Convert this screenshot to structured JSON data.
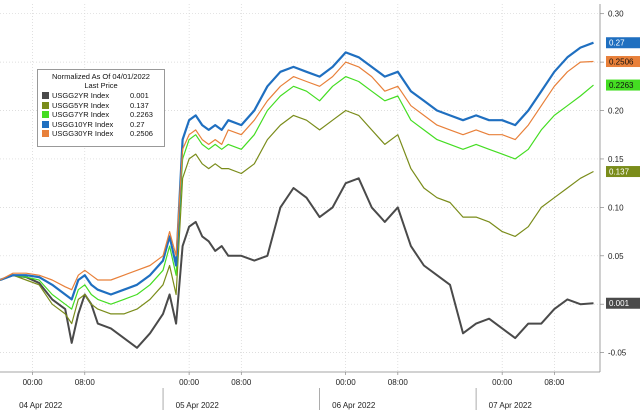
{
  "chart_data": {
    "type": "line",
    "title": "",
    "xlabel": "",
    "ylabel": "",
    "ylim": [
      -0.07,
      0.31
    ],
    "yticks": [
      -0.05,
      0.0,
      0.05,
      0.1,
      0.15,
      0.2,
      0.25,
      0.3
    ],
    "ytick_labels": [
      "-0.05",
      "0.00",
      "0.05",
      "0.10",
      "0.15",
      "0.20",
      "0.25",
      "0.30"
    ],
    "grid": true,
    "legend_position": "top-left",
    "legend_title": "Normalized As Of 04/01/2022",
    "legend_subtitle": "Last Price",
    "x_time_labels": [
      "00:00",
      "08:00",
      "00:00",
      "08:00",
      "00:00",
      "08:00",
      "00:00",
      "08:00"
    ],
    "x_time_positions_hours": [
      0,
      8,
      24,
      32,
      48,
      56,
      72,
      80
    ],
    "x_date_labels": [
      "04 Apr 2022",
      "05 Apr 2022",
      "06 Apr 2022",
      "07 Apr 2022"
    ],
    "x_date_positions_hours": [
      4,
      28,
      52,
      76
    ],
    "x_range_hours": [
      -5,
      87
    ],
    "series": [
      {
        "name": "USGG2YR Index",
        "last": "0.001",
        "color": "#4a4a4a",
        "x": [
          -5,
          -3,
          -1,
          1,
          3,
          5,
          6,
          7,
          8,
          9,
          10,
          12,
          14,
          16,
          18,
          20,
          21,
          22,
          23,
          24,
          25,
          26,
          27,
          28,
          29,
          30,
          32,
          34,
          36,
          38,
          40,
          42,
          44,
          46,
          48,
          50,
          52,
          54,
          56,
          58,
          60,
          62,
          64,
          66,
          68,
          70,
          72,
          74,
          76,
          78,
          80,
          82,
          84,
          86
        ],
        "y": [
          0.025,
          0.03,
          0.028,
          0.022,
          0.005,
          -0.005,
          -0.04,
          -0.01,
          0.01,
          0.0,
          -0.02,
          -0.025,
          -0.035,
          -0.045,
          -0.03,
          -0.01,
          0.01,
          -0.02,
          0.06,
          0.08,
          0.085,
          0.07,
          0.065,
          0.055,
          0.06,
          0.05,
          0.05,
          0.045,
          0.05,
          0.1,
          0.12,
          0.11,
          0.09,
          0.1,
          0.125,
          0.13,
          0.1,
          0.085,
          0.1,
          0.06,
          0.04,
          0.03,
          0.02,
          -0.03,
          -0.02,
          -0.015,
          -0.025,
          -0.035,
          -0.02,
          -0.02,
          -0.005,
          0.005,
          0.0,
          0.001
        ]
      },
      {
        "name": "USGG5YR Index",
        "last": "0.137",
        "color": "#7a8c1a",
        "x": [
          -5,
          -3,
          -1,
          1,
          3,
          5,
          6,
          7,
          8,
          9,
          10,
          12,
          14,
          16,
          18,
          20,
          21,
          22,
          23,
          24,
          25,
          26,
          27,
          28,
          29,
          30,
          32,
          34,
          36,
          38,
          40,
          42,
          44,
          46,
          48,
          50,
          52,
          54,
          56,
          58,
          60,
          62,
          64,
          66,
          68,
          70,
          72,
          74,
          76,
          78,
          80,
          82,
          84,
          86
        ],
        "y": [
          0.025,
          0.03,
          0.025,
          0.02,
          0.0,
          -0.01,
          -0.02,
          0.005,
          0.01,
          0.0,
          -0.005,
          -0.01,
          -0.01,
          -0.005,
          0.005,
          0.02,
          0.04,
          0.01,
          0.13,
          0.15,
          0.155,
          0.145,
          0.14,
          0.145,
          0.14,
          0.14,
          0.135,
          0.145,
          0.17,
          0.185,
          0.195,
          0.19,
          0.18,
          0.19,
          0.2,
          0.195,
          0.18,
          0.165,
          0.175,
          0.14,
          0.12,
          0.11,
          0.105,
          0.09,
          0.09,
          0.085,
          0.075,
          0.07,
          0.08,
          0.1,
          0.11,
          0.12,
          0.13,
          0.137
        ]
      },
      {
        "name": "USGG7YR Index",
        "last": "0.2263",
        "color": "#44dd22",
        "x": [
          -5,
          -3,
          -1,
          1,
          3,
          5,
          6,
          7,
          8,
          9,
          10,
          12,
          14,
          16,
          18,
          20,
          21,
          22,
          23,
          24,
          25,
          26,
          27,
          28,
          29,
          30,
          32,
          34,
          36,
          38,
          40,
          42,
          44,
          46,
          48,
          50,
          52,
          54,
          56,
          58,
          60,
          62,
          64,
          66,
          68,
          70,
          72,
          74,
          76,
          78,
          80,
          82,
          84,
          86
        ],
        "y": [
          0.025,
          0.03,
          0.028,
          0.025,
          0.01,
          0.0,
          -0.005,
          0.015,
          0.02,
          0.01,
          0.005,
          0.0,
          0.005,
          0.01,
          0.02,
          0.035,
          0.06,
          0.03,
          0.15,
          0.17,
          0.175,
          0.165,
          0.16,
          0.165,
          0.16,
          0.165,
          0.16,
          0.175,
          0.2,
          0.215,
          0.225,
          0.22,
          0.21,
          0.225,
          0.235,
          0.23,
          0.22,
          0.21,
          0.215,
          0.19,
          0.18,
          0.17,
          0.165,
          0.16,
          0.165,
          0.16,
          0.155,
          0.15,
          0.16,
          0.18,
          0.195,
          0.205,
          0.215,
          0.2263
        ]
      },
      {
        "name": "USGG10YR Index",
        "last": "0.27",
        "color": "#1f6fc0",
        "x": [
          -5,
          -3,
          -1,
          1,
          3,
          5,
          6,
          7,
          8,
          9,
          10,
          12,
          14,
          16,
          18,
          20,
          21,
          22,
          23,
          24,
          25,
          26,
          27,
          28,
          29,
          30,
          32,
          34,
          36,
          38,
          40,
          42,
          44,
          46,
          48,
          50,
          52,
          54,
          56,
          58,
          60,
          62,
          64,
          66,
          68,
          70,
          72,
          74,
          76,
          78,
          80,
          82,
          84,
          86
        ],
        "y": [
          0.025,
          0.03,
          0.03,
          0.028,
          0.02,
          0.01,
          0.005,
          0.025,
          0.03,
          0.02,
          0.015,
          0.01,
          0.015,
          0.02,
          0.03,
          0.045,
          0.07,
          0.04,
          0.17,
          0.19,
          0.195,
          0.185,
          0.18,
          0.185,
          0.18,
          0.19,
          0.185,
          0.2,
          0.225,
          0.24,
          0.245,
          0.24,
          0.235,
          0.245,
          0.26,
          0.255,
          0.245,
          0.235,
          0.24,
          0.22,
          0.21,
          0.2,
          0.195,
          0.19,
          0.195,
          0.19,
          0.19,
          0.185,
          0.2,
          0.22,
          0.24,
          0.255,
          0.265,
          0.27
        ]
      },
      {
        "name": "USGG30YR Index",
        "last": "0.2506",
        "color": "#e8803a",
        "x": [
          -5,
          -3,
          -1,
          1,
          3,
          5,
          6,
          7,
          8,
          9,
          10,
          12,
          14,
          16,
          18,
          20,
          21,
          22,
          23,
          24,
          25,
          26,
          27,
          28,
          29,
          30,
          32,
          34,
          36,
          38,
          40,
          42,
          44,
          46,
          48,
          50,
          52,
          54,
          56,
          58,
          60,
          62,
          64,
          66,
          68,
          70,
          72,
          74,
          76,
          78,
          80,
          82,
          84,
          86
        ],
        "y": [
          0.025,
          0.032,
          0.032,
          0.03,
          0.025,
          0.018,
          0.015,
          0.03,
          0.035,
          0.03,
          0.025,
          0.025,
          0.03,
          0.035,
          0.04,
          0.05,
          0.075,
          0.05,
          0.16,
          0.175,
          0.18,
          0.17,
          0.165,
          0.17,
          0.165,
          0.18,
          0.175,
          0.19,
          0.21,
          0.225,
          0.235,
          0.23,
          0.225,
          0.235,
          0.25,
          0.245,
          0.235,
          0.22,
          0.225,
          0.205,
          0.195,
          0.185,
          0.18,
          0.175,
          0.18,
          0.175,
          0.175,
          0.17,
          0.185,
          0.205,
          0.225,
          0.24,
          0.25,
          0.2506
        ]
      }
    ]
  }
}
